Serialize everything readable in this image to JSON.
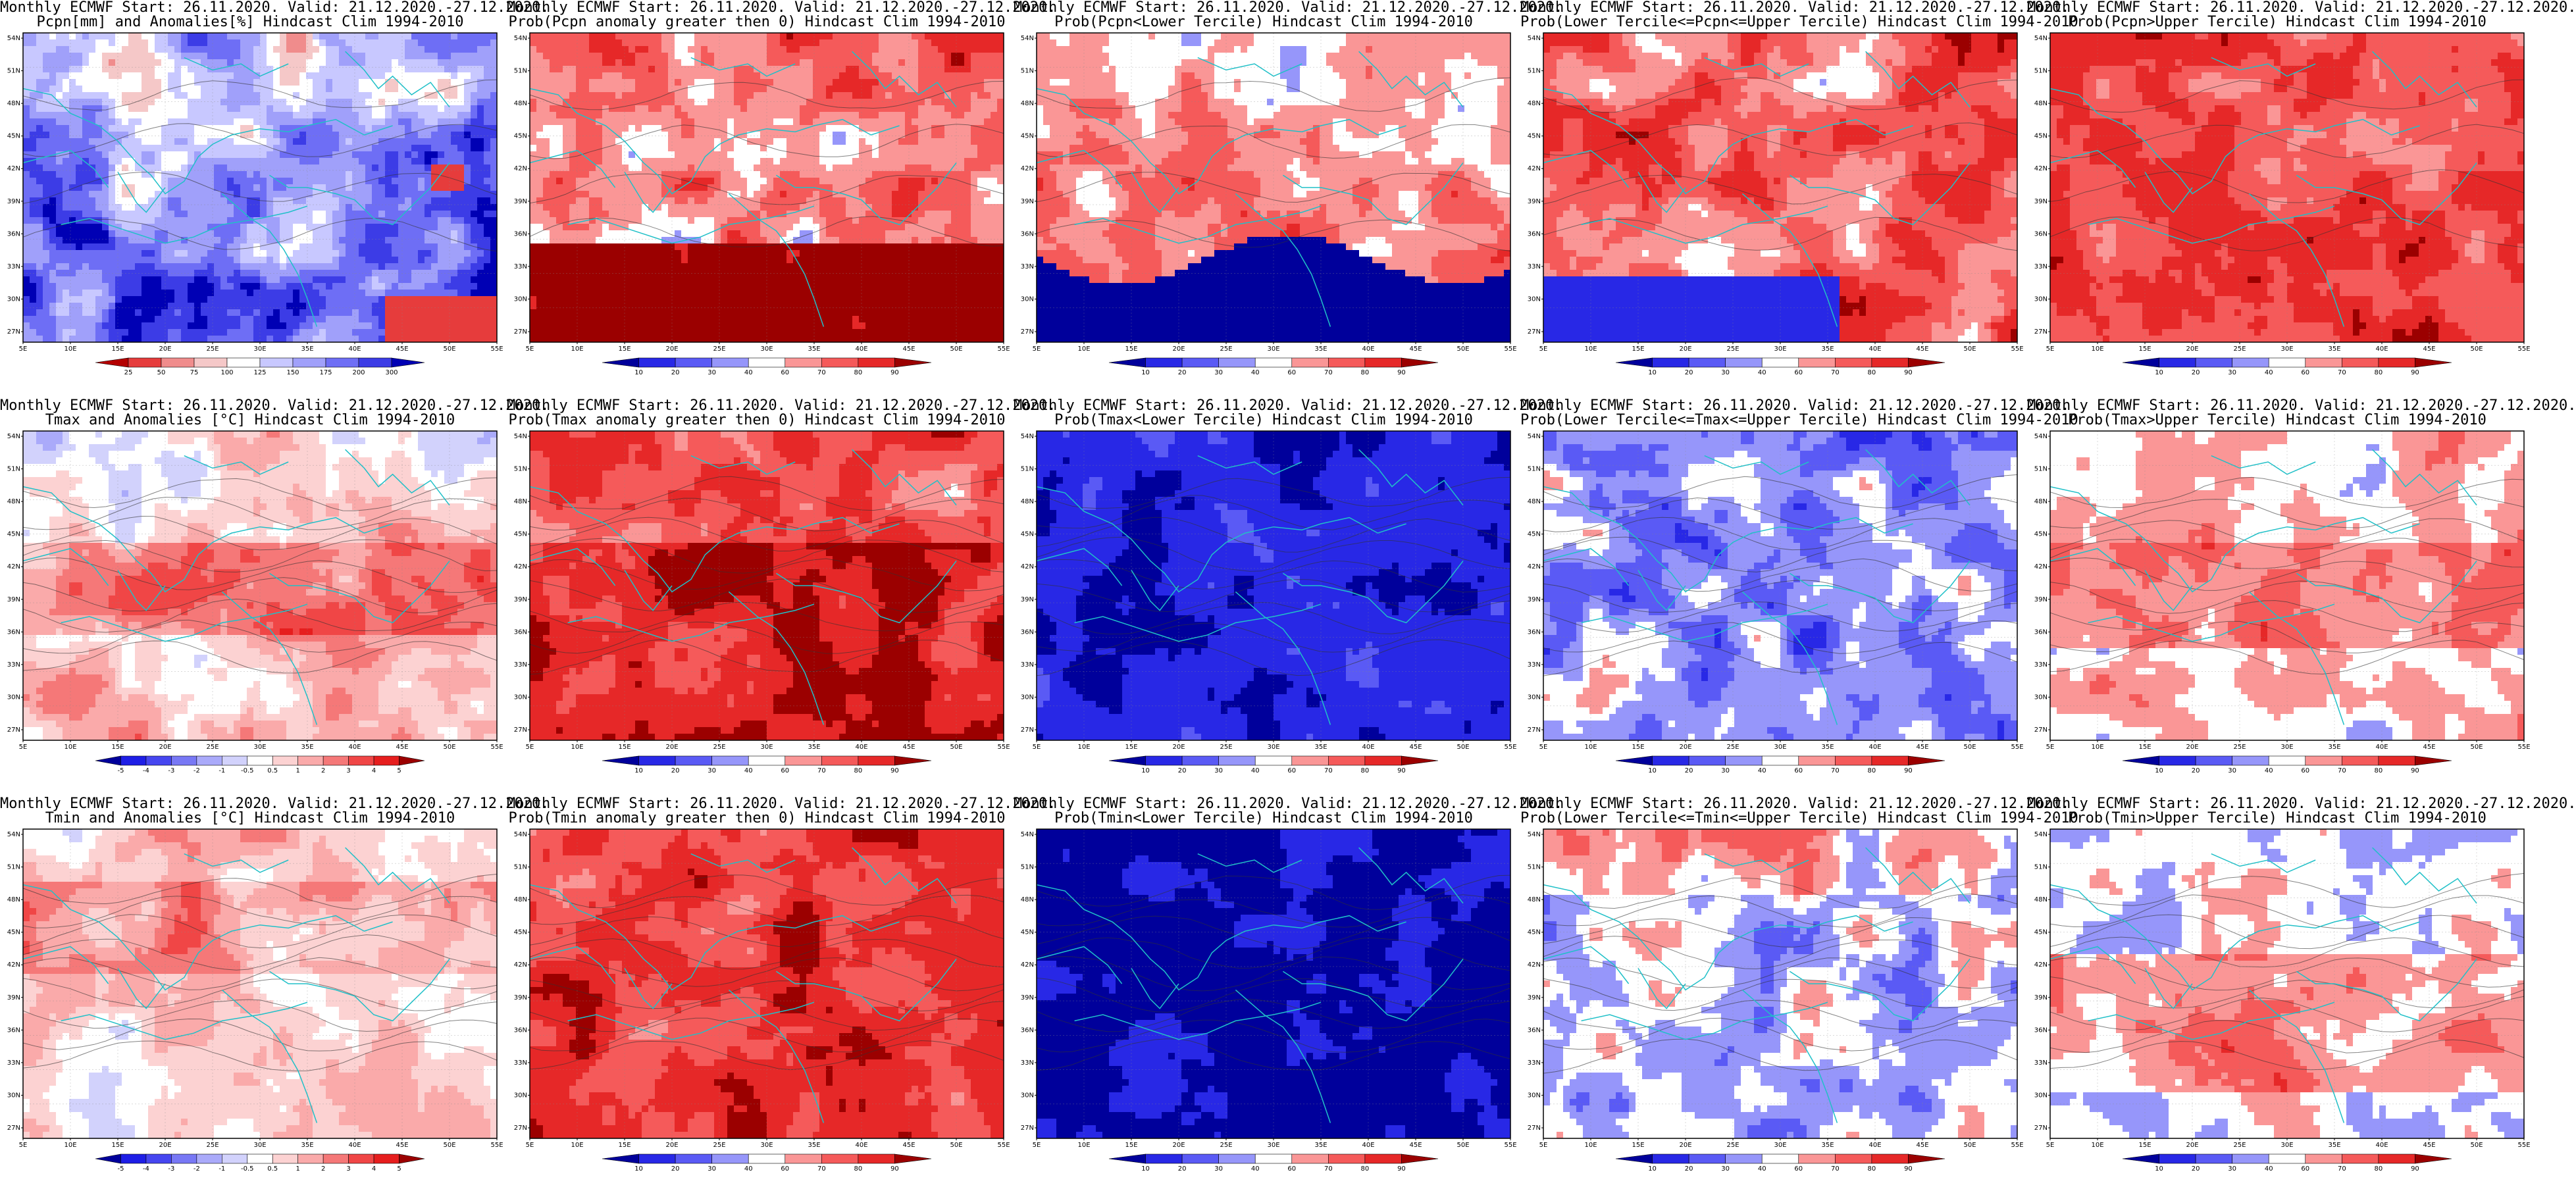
{
  "lat_labels": [
    "54N",
    "51N",
    "48N",
    "45N",
    "42N",
    "39N",
    "36N",
    "33N",
    "30N",
    "27N"
  ],
  "lon_labels": [
    "5E",
    "10E",
    "15E",
    "20E",
    "25E",
    "30E",
    "35E",
    "40E",
    "45E",
    "50E",
    "55E"
  ],
  "panels": [
    {
      "row": 0,
      "col": 0,
      "line1": "Monthly ECMWF Start: 26.11.2020. Valid: 21.12.2020.-27.12.2020.",
      "line2": "Pcpn[mm] and Anomalies[%] Hindcast Clim 1994-2010",
      "scale": "pcpn_anom",
      "pattern": "p_anom"
    },
    {
      "row": 0,
      "col": 1,
      "line1": "Monthly ECMWF Start: 26.11.2020. Valid: 21.12.2020.-27.12.2020.",
      "line2": "Prob(Pcpn anomaly greater then 0) Hindcast Clim 1994-2010",
      "scale": "prob",
      "pattern": "p_gt0"
    },
    {
      "row": 0,
      "col": 2,
      "line1": "Monthly ECMWF Start: 26.11.2020. Valid: 21.12.2020.-27.12.2020.",
      "line2": "Prob(Pcpn<Lower Tercile) Hindcast Clim 1994-2010",
      "scale": "prob",
      "pattern": "p_low"
    },
    {
      "row": 0,
      "col": 3,
      "line1": "Monthly ECMWF Start: 26.11.2020. Valid: 21.12.2020.-27.12.2020.",
      "line2": "Prob(Lower Tercile<=Pcpn<=Upper Tercile) Hindcast Clim 1994-2010",
      "scale": "prob",
      "pattern": "p_mid"
    },
    {
      "row": 0,
      "col": 4,
      "line1": "Monthly ECMWF Start: 26.11.2020. Valid: 21.12.2020.-27.12.2020.",
      "line2": "Prob(Pcpn>Upper Tercile) Hindcast Clim 1994-2010",
      "scale": "prob",
      "pattern": "p_up"
    },
    {
      "row": 1,
      "col": 0,
      "line1": "Monthly ECMWF Start: 26.11.2020. Valid: 21.12.2020.-27.12.2020.",
      "line2": "Tmax and Anomalies [°C] Hindcast Clim 1994-2010",
      "scale": "temp_anom",
      "pattern": "t_anom"
    },
    {
      "row": 1,
      "col": 1,
      "line1": "Monthly ECMWF Start: 26.11.2020. Valid: 21.12.2020.-27.12.2020.",
      "line2": "Prob(Tmax anomaly greater then 0) Hindcast Clim 1994-2010",
      "scale": "prob",
      "pattern": "t_gt0"
    },
    {
      "row": 1,
      "col": 2,
      "line1": "Monthly ECMWF Start: 26.11.2020. Valid: 21.12.2020.-27.12.2020.",
      "line2": "Prob(Tmax<Lower Tercile) Hindcast Clim 1994-2010",
      "scale": "prob",
      "pattern": "t_low"
    },
    {
      "row": 1,
      "col": 3,
      "line1": "Monthly ECMWF Start: 26.11.2020. Valid: 21.12.2020.-27.12.2020.",
      "line2": "Prob(Lower Tercile<=Tmax<=Upper Tercile) Hindcast Clim 1994-2010",
      "scale": "prob",
      "pattern": "t_mid"
    },
    {
      "row": 1,
      "col": 4,
      "line1": "Monthly ECMWF Start: 26.11.2020. Valid: 21.12.2020.-27.12.2020.",
      "line2": "Prob(Tmax>Upper Tercile) Hindcast Clim 1994-2010",
      "scale": "prob",
      "pattern": "t_up"
    },
    {
      "row": 2,
      "col": 0,
      "line1": "Monthly ECMWF Start: 26.11.2020. Valid: 21.12.2020.-27.12.2020.",
      "line2": "Tmin and Anomalies [°C] Hindcast Clim 1994-2010",
      "scale": "temp_anom",
      "pattern": "n_anom"
    },
    {
      "row": 2,
      "col": 1,
      "line1": "Monthly ECMWF Start: 26.11.2020. Valid: 21.12.2020.-27.12.2020.",
      "line2": "Prob(Tmin anomaly greater then 0) Hindcast Clim 1994-2010",
      "scale": "prob",
      "pattern": "n_gt0"
    },
    {
      "row": 2,
      "col": 2,
      "line1": "Monthly ECMWF Start: 26.11.2020. Valid: 21.12.2020.-27.12.2020.",
      "line2": "Prob(Tmin<Lower Tercile) Hindcast Clim 1994-2010",
      "scale": "prob",
      "pattern": "n_low"
    },
    {
      "row": 2,
      "col": 3,
      "line1": "Monthly ECMWF Start: 26.11.2020. Valid: 21.12.2020.-27.12.2020.",
      "line2": "Prob(Lower Tercile<=Tmin<=Upper Tercile) Hindcast Clim 1994-2010",
      "scale": "prob",
      "pattern": "n_mid"
    },
    {
      "row": 2,
      "col": 4,
      "line1": "Monthly ECMWF Start: 26.11.2020. Valid: 21.12.2020.-27.12.2020.",
      "line2": "Prob(Tmin>Upper Tercile) Hindcast Clim 1994-2010",
      "scale": "prob",
      "pattern": "n_up"
    }
  ],
  "scales": {
    "pcpn_anom": {
      "labels": [
        "25",
        "50",
        "75",
        "100",
        "125",
        "150",
        "175",
        "200",
        "300"
      ],
      "colors": [
        "#b40000",
        "#e63c3c",
        "#f08c8c",
        "#f5c8c8",
        "#ffffff",
        "#c8c8ff",
        "#a0a0fa",
        "#6e6ef5",
        "#3c3ce6",
        "#0000b4"
      ]
    },
    "prob": {
      "labels": [
        "10",
        "20",
        "30",
        "40",
        "60",
        "70",
        "80",
        "90"
      ],
      "colors": [
        "#00009b",
        "#2828e6",
        "#5a5af5",
        "#9696fa",
        "#ffffff",
        "#fa9696",
        "#f55a5a",
        "#e62828",
        "#9b0000"
      ]
    },
    "temp_anom": {
      "labels": [
        "-5",
        "-4",
        "-3",
        "-2",
        "-1",
        "-0.5",
        "0.5",
        "1",
        "2",
        "3",
        "4",
        "5"
      ],
      "colors": [
        "#00009b",
        "#1e1ee6",
        "#4646f0",
        "#7878f5",
        "#aaaafa",
        "#d2d2fc",
        "#ffffff",
        "#fcd2d2",
        "#faaaaa",
        "#f57878",
        "#f04646",
        "#e61e1e",
        "#9b0000"
      ]
    }
  }
}
